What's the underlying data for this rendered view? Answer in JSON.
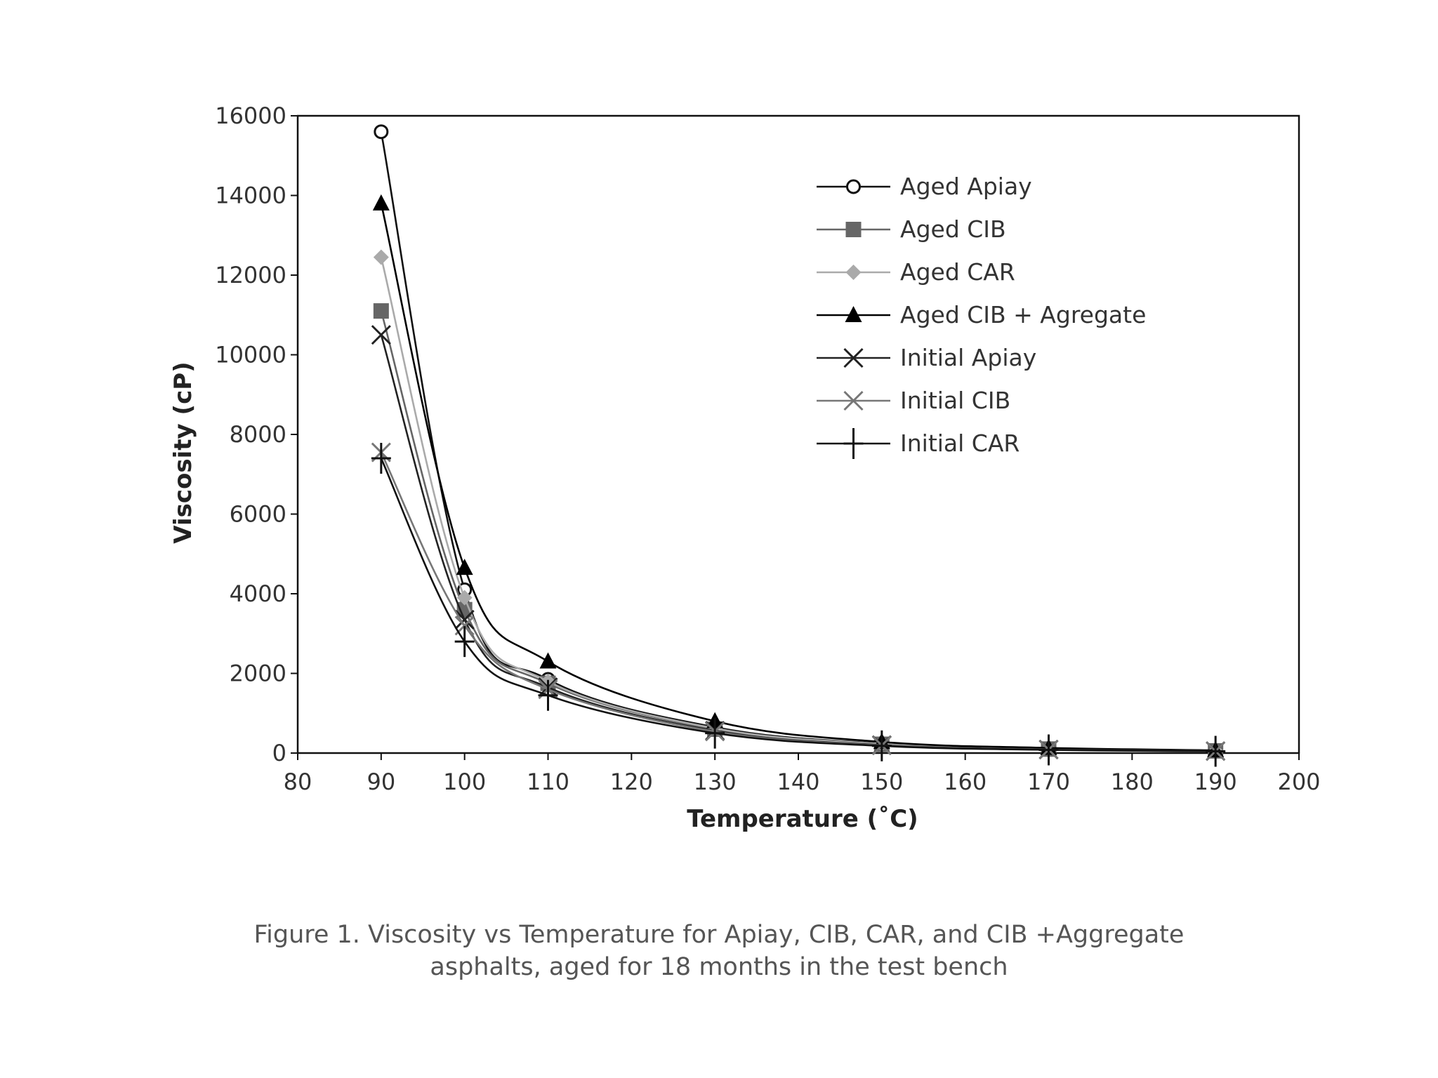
{
  "chart_data": {
    "type": "line",
    "xlabel": "Temperature (˚C)",
    "ylabel": "Viscosity (cP)",
    "xlim": [
      80,
      200
    ],
    "ylim": [
      0,
      16000
    ],
    "xticks": [
      "80",
      "90",
      "100",
      "110",
      "120",
      "130",
      "140",
      "150",
      "160",
      "170",
      "180",
      "190",
      "200"
    ],
    "yticks": [
      "0",
      "2000",
      "4000",
      "6000",
      "8000",
      "10000",
      "12000",
      "14000",
      "16000"
    ],
    "grid": false,
    "legend_position": "top-right",
    "series": [
      {
        "name": "Aged Apiay",
        "marker": "circle-open",
        "color": "#111111",
        "x": [
          90,
          100,
          110,
          130,
          150,
          170,
          190
        ],
        "y": [
          15600,
          4100,
          1850,
          650,
          240,
          110,
          60
        ]
      },
      {
        "name": "Aged CIB",
        "marker": "square",
        "color": "#666666",
        "x": [
          90,
          100,
          110,
          130,
          150,
          170,
          190
        ],
        "y": [
          11100,
          3600,
          1750,
          600,
          220,
          100,
          55
        ]
      },
      {
        "name": "Aged CAR",
        "marker": "diamond",
        "color": "#aaaaaa",
        "x": [
          90,
          100,
          110,
          130,
          150,
          170,
          190
        ],
        "y": [
          12450,
          3900,
          1800,
          620,
          230,
          105,
          58
        ]
      },
      {
        "name": "Aged CIB + Agregate",
        "marker": "triangle",
        "color": "#000000",
        "x": [
          90,
          100,
          110,
          130,
          150,
          170,
          190
        ],
        "y": [
          13800,
          4650,
          2300,
          800,
          280,
          130,
          70
        ]
      },
      {
        "name": "Initial Apiay",
        "marker": "x",
        "color": "#222222",
        "x": [
          90,
          100,
          110,
          130,
          150,
          170,
          190
        ],
        "y": [
          10500,
          3350,
          1650,
          560,
          200,
          90,
          50
        ]
      },
      {
        "name": "Initial CIB",
        "marker": "x",
        "color": "#777777",
        "x": [
          90,
          100,
          110,
          130,
          150,
          170,
          190
        ],
        "y": [
          7550,
          3200,
          1600,
          540,
          190,
          85,
          48
        ]
      },
      {
        "name": "Initial CAR",
        "marker": "plus",
        "color": "#111111",
        "x": [
          90,
          100,
          110,
          130,
          150,
          170,
          190
        ],
        "y": [
          7400,
          2800,
          1450,
          500,
          180,
          80,
          45
        ]
      }
    ]
  },
  "caption": {
    "line1": "Figure 1. Viscosity vs Temperature for Apiay, CIB, CAR, and CIB +Aggregate",
    "line2": "asphalts, aged for 18 months in the test bench"
  }
}
